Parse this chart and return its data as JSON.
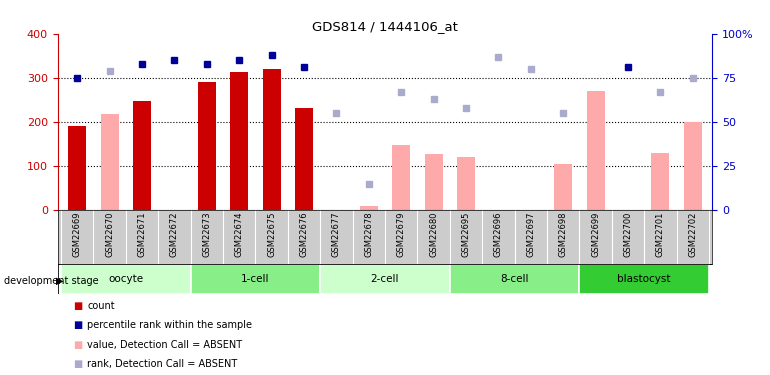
{
  "title": "GDS814 / 1444106_at",
  "samples": [
    "GSM22669",
    "GSM22670",
    "GSM22671",
    "GSM22672",
    "GSM22673",
    "GSM22674",
    "GSM22675",
    "GSM22676",
    "GSM22677",
    "GSM22678",
    "GSM22679",
    "GSM22680",
    "GSM22695",
    "GSM22696",
    "GSM22697",
    "GSM22698",
    "GSM22699",
    "GSM22700",
    "GSM22701",
    "GSM22702"
  ],
  "count_values": [
    190,
    null,
    247,
    null,
    290,
    313,
    320,
    232,
    null,
    null,
    null,
    null,
    null,
    null,
    null,
    null,
    null,
    null,
    null,
    null
  ],
  "absent_value_bars": [
    null,
    218,
    null,
    null,
    null,
    null,
    null,
    null,
    null,
    10,
    148,
    128,
    120,
    null,
    null,
    105,
    270,
    null,
    130,
    200
  ],
  "percentile_rank_pct": [
    null,
    null,
    null,
    null,
    83,
    85,
    89,
    81,
    null,
    null,
    null,
    null,
    null,
    null,
    null,
    null,
    null,
    82,
    null,
    null
  ],
  "absent_rank_pct": [
    75,
    79,
    null,
    null,
    null,
    null,
    null,
    null,
    55,
    15,
    67,
    63,
    59,
    87,
    80,
    55,
    null,
    null,
    67,
    75
  ],
  "dark_blue_pct": [
    75,
    null,
    83,
    85,
    null,
    null,
    null,
    81,
    null,
    null,
    null,
    null,
    null,
    null,
    null,
    null,
    null,
    82,
    null,
    null
  ],
  "count_color": "#cc0000",
  "absent_value_color": "#ffaaaa",
  "percentile_color": "#000099",
  "absent_rank_color": "#aaaacc",
  "stages": [
    {
      "label": "oocyte",
      "start": 0,
      "end": 4,
      "color": "#ccffcc"
    },
    {
      "label": "1-cell",
      "start": 4,
      "end": 8,
      "color": "#88ee88"
    },
    {
      "label": "2-cell",
      "start": 8,
      "end": 12,
      "color": "#ccffcc"
    },
    {
      "label": "8-cell",
      "start": 12,
      "end": 16,
      "color": "#88ee88"
    },
    {
      "label": "blastocyst",
      "start": 16,
      "end": 20,
      "color": "#33cc33"
    }
  ],
  "ylim_left": [
    0,
    400
  ],
  "ylim_right": [
    0,
    100
  ],
  "yticks_left": [
    0,
    100,
    200,
    300,
    400
  ],
  "yticks_right": [
    0,
    25,
    50,
    75,
    100
  ],
  "yticklabels_right": [
    "0",
    "25",
    "50",
    "75",
    "100%"
  ],
  "bar_width": 0.55
}
